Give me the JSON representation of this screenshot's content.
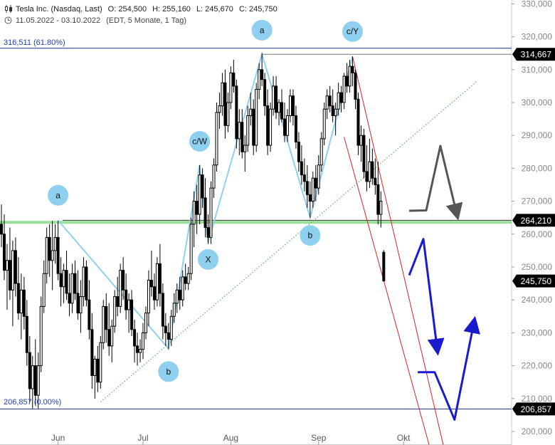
{
  "header": {
    "instrument": "Tesla Inc. (Nasdaq, Last)",
    "open": "O: 254,500",
    "high": "H: 255,160",
    "low": "L: 245,670",
    "close": "C: 245,750",
    "date_range": "11.05.2022 - 03.10.2022",
    "timeframe": "(EDT, 5 Monate, 1 Tag)",
    "chart_icon": "candlestick-icon",
    "clock_icon": "clock-icon"
  },
  "fib_levels": {
    "top_label": "316,511 (61.80%)",
    "bottom_label": "206,857 (0.00%)",
    "top_value": 316.511,
    "bottom_value": 206.857
  },
  "colors": {
    "candle": "#000000",
    "wave_line": "#8fd0f0",
    "wave_label_fill": "#8fd0f0",
    "fib_line": "#1f2f8f",
    "fib_text": "#1f3fc0",
    "support_band": "#7fd67f",
    "channel": "#e02020",
    "trendline_dotted": "#3aaa3a",
    "projection_gray": "#555555",
    "projection_blue": "#1a1ad0",
    "price_box": "#000000"
  },
  "chart_data": {
    "type": "candlestick",
    "instrument": "Tesla Inc. (Nasdaq, Last)",
    "y_axis": {
      "side": "right",
      "range": [
        198000,
        330000
      ],
      "ticks": [
        "200,000",
        "210,000",
        "220,000",
        "230,000",
        "240,000",
        "250,000",
        "260,000",
        "270,000",
        "280,000",
        "290,000",
        "300,000",
        "310,000",
        "320,000",
        "330,000"
      ]
    },
    "x_axis": {
      "ticks": [
        {
          "label": "Jun",
          "day": 20
        },
        {
          "label": "Jul",
          "day": 50
        },
        {
          "label": "Aug",
          "day": 81
        },
        {
          "label": "Sep",
          "day": 112
        },
        {
          "label": "Okt",
          "day": 142
        }
      ]
    },
    "price_boxes": [
      {
        "label": "314,667",
        "value": 314.667
      },
      {
        "label": "264,210",
        "value": 264.21
      },
      {
        "label": "245,750",
        "value": 245.75
      },
      {
        "label": "206,857",
        "value": 206.857
      }
    ],
    "support_level": 263.8,
    "wave_points": [
      {
        "day": 20,
        "value": 264.2
      },
      {
        "day": 59,
        "value": 225.2
      },
      {
        "day": 70,
        "value": 281.0
      },
      {
        "day": 73,
        "value": 257.5
      },
      {
        "day": 92,
        "value": 314.7
      },
      {
        "day": 109,
        "value": 265.0
      },
      {
        "day": 124,
        "value": 314.0
      }
    ],
    "wave_labels": [
      {
        "text": "a",
        "day": 20,
        "value": 271.8
      },
      {
        "text": "b",
        "day": 59,
        "value": 218.2
      },
      {
        "text": "c/W",
        "day": 70,
        "value": 288.2
      },
      {
        "text": "X",
        "day": 73,
        "value": 252.3
      },
      {
        "text": "a",
        "day": 92,
        "value": 322.0
      },
      {
        "text": "b",
        "day": 109,
        "value": 259.6
      },
      {
        "text": "c/Y",
        "day": 124,
        "value": 321.6
      }
    ],
    "dotted_trendline": [
      {
        "day": 35,
        "value": 209.0
      },
      {
        "day": 168,
        "value": 306.5
      }
    ],
    "channel_lines": [
      [
        {
          "day": 124,
          "value": 314.0
        },
        {
          "day": 156,
          "value": 196.0
        }
      ],
      [
        {
          "day": 121,
          "value": 289.5
        },
        {
          "day": 151,
          "value": 196.0
        }
      ]
    ],
    "projection_gray": [
      {
        "day": 144,
        "value": 267.1
      },
      {
        "day": 150,
        "value": 267.2
      },
      {
        "day": 155,
        "value": 286.8
      },
      {
        "day": 161,
        "value": 265.4
      }
    ],
    "projection_blue_1": [
      {
        "day": 144,
        "value": 247.5
      },
      {
        "day": 149,
        "value": 258.5
      },
      {
        "day": 154,
        "value": 224.3
      }
    ],
    "projection_blue_2": [
      {
        "day": 147,
        "value": 218.0
      },
      {
        "day": 153,
        "value": 218.0
      },
      {
        "day": 160,
        "value": 203.6
      },
      {
        "day": 167,
        "value": 233.8
      }
    ],
    "candles": [
      {
        "day": 0,
        "o": 263,
        "h": 269,
        "l": 256,
        "c": 260
      },
      {
        "day": 1,
        "o": 260,
        "h": 266,
        "l": 246,
        "c": 249
      },
      {
        "day": 2,
        "o": 249,
        "h": 257,
        "l": 237,
        "c": 252
      },
      {
        "day": 3,
        "o": 252,
        "h": 262,
        "l": 240,
        "c": 243
      },
      {
        "day": 4,
        "o": 243,
        "h": 258,
        "l": 232,
        "c": 255
      },
      {
        "day": 5,
        "o": 255,
        "h": 259,
        "l": 241,
        "c": 245
      },
      {
        "day": 6,
        "o": 245,
        "h": 253,
        "l": 234,
        "c": 236
      },
      {
        "day": 7,
        "o": 236,
        "h": 248,
        "l": 228,
        "c": 243
      },
      {
        "day": 8,
        "o": 243,
        "h": 247,
        "l": 231,
        "c": 235
      },
      {
        "day": 9,
        "o": 235,
        "h": 240,
        "l": 220,
        "c": 224
      },
      {
        "day": 10,
        "o": 224,
        "h": 229,
        "l": 209,
        "c": 213
      },
      {
        "day": 11,
        "o": 213,
        "h": 223,
        "l": 207,
        "c": 220
      },
      {
        "day": 12,
        "o": 220,
        "h": 228,
        "l": 208,
        "c": 211
      },
      {
        "day": 13,
        "o": 211,
        "h": 224,
        "l": 207,
        "c": 220
      },
      {
        "day": 14,
        "o": 220,
        "h": 241,
        "l": 218,
        "c": 238
      },
      {
        "day": 15,
        "o": 238,
        "h": 252,
        "l": 236,
        "c": 248
      },
      {
        "day": 16,
        "o": 248,
        "h": 262,
        "l": 245,
        "c": 259
      },
      {
        "day": 17,
        "o": 259,
        "h": 263,
        "l": 247,
        "c": 252
      },
      {
        "day": 18,
        "o": 252,
        "h": 264,
        "l": 243,
        "c": 255
      },
      {
        "day": 19,
        "o": 255,
        "h": 263,
        "l": 251,
        "c": 259
      },
      {
        "day": 20,
        "o": 259,
        "h": 264,
        "l": 246,
        "c": 248
      },
      {
        "day": 21,
        "o": 248,
        "h": 253,
        "l": 238,
        "c": 244
      },
      {
        "day": 22,
        "o": 244,
        "h": 251,
        "l": 239,
        "c": 249
      },
      {
        "day": 23,
        "o": 249,
        "h": 255,
        "l": 240,
        "c": 242
      },
      {
        "day": 24,
        "o": 242,
        "h": 248,
        "l": 235,
        "c": 239
      },
      {
        "day": 25,
        "o": 239,
        "h": 251,
        "l": 236,
        "c": 248
      },
      {
        "day": 26,
        "o": 248,
        "h": 252,
        "l": 240,
        "c": 242
      },
      {
        "day": 27,
        "o": 242,
        "h": 249,
        "l": 234,
        "c": 236
      },
      {
        "day": 28,
        "o": 236,
        "h": 246,
        "l": 230,
        "c": 241
      },
      {
        "day": 29,
        "o": 241,
        "h": 253,
        "l": 238,
        "c": 250
      },
      {
        "day": 30,
        "o": 250,
        "h": 252,
        "l": 238,
        "c": 240
      },
      {
        "day": 31,
        "o": 240,
        "h": 246,
        "l": 228,
        "c": 231
      },
      {
        "day": 32,
        "o": 231,
        "h": 236,
        "l": 213,
        "c": 217
      },
      {
        "day": 33,
        "o": 217,
        "h": 223,
        "l": 210,
        "c": 222
      },
      {
        "day": 34,
        "o": 222,
        "h": 226,
        "l": 212,
        "c": 215
      },
      {
        "day": 35,
        "o": 215,
        "h": 229,
        "l": 213,
        "c": 227
      },
      {
        "day": 36,
        "o": 227,
        "h": 240,
        "l": 225,
        "c": 238
      },
      {
        "day": 37,
        "o": 238,
        "h": 242,
        "l": 227,
        "c": 231
      },
      {
        "day": 38,
        "o": 231,
        "h": 239,
        "l": 223,
        "c": 226
      },
      {
        "day": 39,
        "o": 226,
        "h": 234,
        "l": 221,
        "c": 232
      },
      {
        "day": 40,
        "o": 232,
        "h": 243,
        "l": 230,
        "c": 241
      },
      {
        "day": 41,
        "o": 241,
        "h": 247,
        "l": 235,
        "c": 238
      },
      {
        "day": 42,
        "o": 238,
        "h": 251,
        "l": 236,
        "c": 249
      },
      {
        "day": 43,
        "o": 249,
        "h": 253,
        "l": 240,
        "c": 243
      },
      {
        "day": 44,
        "o": 243,
        "h": 248,
        "l": 234,
        "c": 237
      },
      {
        "day": 45,
        "o": 237,
        "h": 242,
        "l": 230,
        "c": 240
      },
      {
        "day": 46,
        "o": 240,
        "h": 243,
        "l": 229,
        "c": 231
      },
      {
        "day": 47,
        "o": 231,
        "h": 234,
        "l": 221,
        "c": 226
      },
      {
        "day": 48,
        "o": 226,
        "h": 230,
        "l": 220,
        "c": 224
      },
      {
        "day": 49,
        "o": 224,
        "h": 228,
        "l": 221,
        "c": 225
      },
      {
        "day": 50,
        "o": 225,
        "h": 233,
        "l": 222,
        "c": 230
      },
      {
        "day": 51,
        "o": 230,
        "h": 238,
        "l": 228,
        "c": 236
      },
      {
        "day": 52,
        "o": 236,
        "h": 249,
        "l": 232,
        "c": 246
      },
      {
        "day": 53,
        "o": 246,
        "h": 255,
        "l": 241,
        "c": 244
      },
      {
        "day": 54,
        "o": 244,
        "h": 248,
        "l": 237,
        "c": 240
      },
      {
        "day": 55,
        "o": 240,
        "h": 253,
        "l": 238,
        "c": 251
      },
      {
        "day": 56,
        "o": 251,
        "h": 257,
        "l": 238,
        "c": 242
      },
      {
        "day": 57,
        "o": 242,
        "h": 245,
        "l": 228,
        "c": 232
      },
      {
        "day": 58,
        "o": 232,
        "h": 236,
        "l": 226,
        "c": 230
      },
      {
        "day": 59,
        "o": 230,
        "h": 233,
        "l": 225,
        "c": 228
      },
      {
        "day": 60,
        "o": 228,
        "h": 237,
        "l": 226,
        "c": 235
      },
      {
        "day": 61,
        "o": 235,
        "h": 242,
        "l": 233,
        "c": 239
      },
      {
        "day": 62,
        "o": 239,
        "h": 245,
        "l": 236,
        "c": 243
      },
      {
        "day": 63,
        "o": 243,
        "h": 247,
        "l": 237,
        "c": 240
      },
      {
        "day": 64,
        "o": 240,
        "h": 249,
        "l": 238,
        "c": 247
      },
      {
        "day": 65,
        "o": 247,
        "h": 251,
        "l": 243,
        "c": 245
      },
      {
        "day": 66,
        "o": 245,
        "h": 250,
        "l": 243,
        "c": 248
      },
      {
        "day": 67,
        "o": 248,
        "h": 265,
        "l": 246,
        "c": 263
      },
      {
        "day": 68,
        "o": 263,
        "h": 273,
        "l": 256,
        "c": 270
      },
      {
        "day": 69,
        "o": 270,
        "h": 275,
        "l": 260,
        "c": 266
      },
      {
        "day": 70,
        "o": 266,
        "h": 281,
        "l": 263,
        "c": 278
      },
      {
        "day": 71,
        "o": 278,
        "h": 280,
        "l": 268,
        "c": 271
      },
      {
        "day": 72,
        "o": 271,
        "h": 277,
        "l": 259,
        "c": 262
      },
      {
        "day": 73,
        "o": 262,
        "h": 266,
        "l": 257,
        "c": 259
      },
      {
        "day": 74,
        "o": 259,
        "h": 276,
        "l": 257,
        "c": 274
      },
      {
        "day": 75,
        "o": 274,
        "h": 283,
        "l": 271,
        "c": 281
      },
      {
        "day": 76,
        "o": 281,
        "h": 300,
        "l": 279,
        "c": 297
      },
      {
        "day": 77,
        "o": 297,
        "h": 303,
        "l": 292,
        "c": 299
      },
      {
        "day": 78,
        "o": 299,
        "h": 309,
        "l": 296,
        "c": 306
      },
      {
        "day": 79,
        "o": 306,
        "h": 310,
        "l": 289,
        "c": 293
      },
      {
        "day": 80,
        "o": 293,
        "h": 303,
        "l": 291,
        "c": 300
      },
      {
        "day": 81,
        "o": 300,
        "h": 311,
        "l": 298,
        "c": 309
      },
      {
        "day": 82,
        "o": 309,
        "h": 313,
        "l": 303,
        "c": 305
      },
      {
        "day": 83,
        "o": 305,
        "h": 307,
        "l": 286,
        "c": 289
      },
      {
        "day": 84,
        "o": 289,
        "h": 298,
        "l": 284,
        "c": 294
      },
      {
        "day": 85,
        "o": 294,
        "h": 298,
        "l": 283,
        "c": 285
      },
      {
        "day": 86,
        "o": 285,
        "h": 290,
        "l": 279,
        "c": 287
      },
      {
        "day": 87,
        "o": 287,
        "h": 299,
        "l": 285,
        "c": 296
      },
      {
        "day": 88,
        "o": 296,
        "h": 303,
        "l": 293,
        "c": 298
      },
      {
        "day": 89,
        "o": 298,
        "h": 301,
        "l": 284,
        "c": 287
      },
      {
        "day": 90,
        "o": 287,
        "h": 306,
        "l": 285,
        "c": 304
      },
      {
        "day": 91,
        "o": 304,
        "h": 312,
        "l": 301,
        "c": 310
      },
      {
        "day": 92,
        "o": 310,
        "h": 315,
        "l": 305,
        "c": 307
      },
      {
        "day": 93,
        "o": 307,
        "h": 309,
        "l": 296,
        "c": 299
      },
      {
        "day": 94,
        "o": 299,
        "h": 304,
        "l": 284,
        "c": 287
      },
      {
        "day": 95,
        "o": 287,
        "h": 300,
        "l": 285,
        "c": 298
      },
      {
        "day": 96,
        "o": 298,
        "h": 308,
        "l": 296,
        "c": 305
      },
      {
        "day": 97,
        "o": 305,
        "h": 308,
        "l": 295,
        "c": 297
      },
      {
        "day": 98,
        "o": 297,
        "h": 301,
        "l": 293,
        "c": 300
      },
      {
        "day": 99,
        "o": 300,
        "h": 304,
        "l": 294,
        "c": 295
      },
      {
        "day": 100,
        "o": 295,
        "h": 300,
        "l": 288,
        "c": 290
      },
      {
        "day": 101,
        "o": 290,
        "h": 298,
        "l": 288,
        "c": 296
      },
      {
        "day": 102,
        "o": 296,
        "h": 304,
        "l": 294,
        "c": 302
      },
      {
        "day": 103,
        "o": 302,
        "h": 304,
        "l": 293,
        "c": 296
      },
      {
        "day": 104,
        "o": 296,
        "h": 299,
        "l": 286,
        "c": 288
      },
      {
        "day": 105,
        "o": 288,
        "h": 291,
        "l": 279,
        "c": 282
      },
      {
        "day": 106,
        "o": 282,
        "h": 287,
        "l": 275,
        "c": 278
      },
      {
        "day": 107,
        "o": 278,
        "h": 283,
        "l": 273,
        "c": 276
      },
      {
        "day": 108,
        "o": 276,
        "h": 281,
        "l": 268,
        "c": 272
      },
      {
        "day": 109,
        "o": 272,
        "h": 276,
        "l": 265,
        "c": 270
      },
      {
        "day": 110,
        "o": 270,
        "h": 279,
        "l": 268,
        "c": 277
      },
      {
        "day": 111,
        "o": 277,
        "h": 281,
        "l": 270,
        "c": 274
      },
      {
        "day": 112,
        "o": 274,
        "h": 284,
        "l": 272,
        "c": 281
      },
      {
        "day": 113,
        "o": 281,
        "h": 291,
        "l": 279,
        "c": 289
      },
      {
        "day": 114,
        "o": 289,
        "h": 300,
        "l": 287,
        "c": 298
      },
      {
        "day": 115,
        "o": 298,
        "h": 304,
        "l": 295,
        "c": 302
      },
      {
        "day": 116,
        "o": 302,
        "h": 305,
        "l": 297,
        "c": 299
      },
      {
        "day": 117,
        "o": 299,
        "h": 304,
        "l": 294,
        "c": 296
      },
      {
        "day": 118,
        "o": 296,
        "h": 300,
        "l": 290,
        "c": 298
      },
      {
        "day": 119,
        "o": 298,
        "h": 306,
        "l": 296,
        "c": 303
      },
      {
        "day": 120,
        "o": 303,
        "h": 305,
        "l": 297,
        "c": 300
      },
      {
        "day": 121,
        "o": 300,
        "h": 309,
        "l": 298,
        "c": 308
      },
      {
        "day": 122,
        "o": 308,
        "h": 312,
        "l": 303,
        "c": 305
      },
      {
        "day": 123,
        "o": 305,
        "h": 313,
        "l": 303,
        "c": 311
      },
      {
        "day": 124,
        "o": 311,
        "h": 314,
        "l": 305,
        "c": 309
      },
      {
        "day": 125,
        "o": 309,
        "h": 310,
        "l": 298,
        "c": 301
      },
      {
        "day": 126,
        "o": 301,
        "h": 303,
        "l": 284,
        "c": 287
      },
      {
        "day": 127,
        "o": 287,
        "h": 293,
        "l": 282,
        "c": 290
      },
      {
        "day": 128,
        "o": 290,
        "h": 292,
        "l": 277,
        "c": 279
      },
      {
        "day": 129,
        "o": 279,
        "h": 287,
        "l": 273,
        "c": 276
      },
      {
        "day": 130,
        "o": 276,
        "h": 289,
        "l": 274,
        "c": 282
      },
      {
        "day": 131,
        "o": 282,
        "h": 286,
        "l": 275,
        "c": 277
      },
      {
        "day": 132,
        "o": 277,
        "h": 283,
        "l": 272,
        "c": 275
      },
      {
        "day": 133,
        "o": 275,
        "h": 282,
        "l": 263,
        "c": 266
      },
      {
        "day": 134,
        "o": 266,
        "h": 273,
        "l": 262,
        "c": 270
      },
      {
        "day": 135,
        "o": 254.5,
        "h": 255.16,
        "l": 245.67,
        "c": 245.75
      }
    ]
  }
}
